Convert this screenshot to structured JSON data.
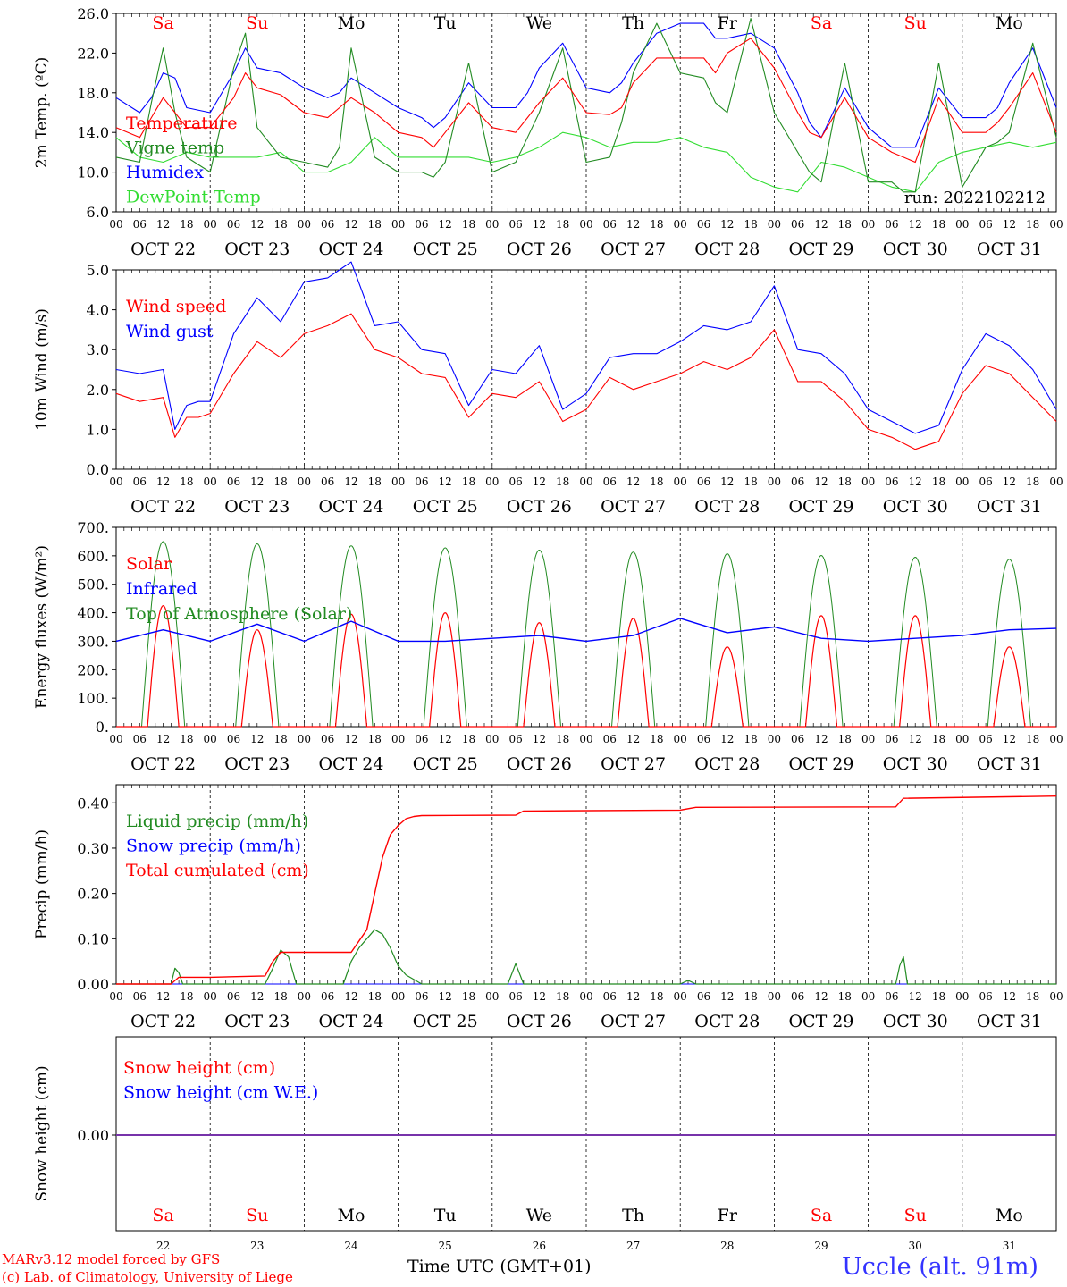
{
  "colors": {
    "red": "#ff0000",
    "green": "#228b22",
    "blue": "#0000ff",
    "lightgreen": "#33dd33",
    "purple": "#7733aa"
  },
  "days": {
    "weekday_labels": [
      "Sa",
      "Su",
      "Mo",
      "Tu",
      "We",
      "Th",
      "Fr",
      "Sa",
      "Su",
      "Mo"
    ],
    "weekend_flags": [
      true,
      true,
      false,
      false,
      false,
      false,
      false,
      true,
      true,
      false
    ],
    "date_labels": [
      "OCT 22",
      "OCT 23",
      "OCT 24",
      "OCT 25",
      "OCT 26",
      "OCT 27",
      "OCT 28",
      "OCT 29",
      "OCT 30",
      "OCT 31"
    ],
    "day_numbers": [
      "22",
      "23",
      "24",
      "25",
      "26",
      "27",
      "28",
      "29",
      "30",
      "31"
    ],
    "hour_ticks": [
      "00",
      "06",
      "12",
      "18"
    ],
    "end_hour": "00"
  },
  "footer": {
    "model_line1": "MARv3.12 model forced by GFS",
    "model_line2": "(c) Lab. of Climatology, University of Liege",
    "xlabel": "Time UTC (GMT+01)",
    "station": "Uccle (alt. 91m)"
  },
  "chart_data": [
    {
      "type": "line",
      "ylabel": "2m Temp. (ºC)",
      "ylim": [
        6.0,
        26.0
      ],
      "yticks": [
        "6.0",
        "10.0",
        "14.0",
        "18.0",
        "22.0",
        "26.0"
      ],
      "annotation": "run: 2022102212",
      "x_unit": "hours since OCT 22 00 UTC",
      "series": [
        {
          "name": "Temperature",
          "color": "red",
          "x": [
            0,
            6,
            9,
            12,
            15,
            18,
            24,
            30,
            33,
            36,
            42,
            48,
            54,
            57,
            60,
            66,
            72,
            78,
            81,
            84,
            90,
            96,
            102,
            105,
            108,
            114,
            120,
            126,
            129,
            132,
            138,
            144,
            150,
            153,
            156,
            162,
            168,
            174,
            177,
            180,
            186,
            192,
            198,
            201,
            204,
            210,
            216,
            222,
            225,
            228,
            234,
            240
          ],
          "y": [
            14.5,
            13.5,
            15.5,
            17.5,
            16.0,
            14.5,
            14.5,
            17.5,
            20.0,
            18.5,
            17.8,
            16.0,
            15.5,
            16.5,
            17.5,
            16.0,
            14.0,
            13.5,
            12.5,
            14.0,
            17.0,
            14.5,
            14.0,
            15.5,
            17.0,
            19.5,
            16.0,
            15.8,
            16.5,
            19.0,
            21.5,
            21.5,
            21.5,
            20.0,
            22.0,
            23.5,
            20.5,
            16.0,
            14.0,
            13.5,
            17.5,
            13.5,
            12.0,
            11.5,
            11.0,
            17.5,
            14.0,
            14.0,
            15.0,
            16.5,
            20.0,
            14.0
          ]
        },
        {
          "name": "Vigne temp",
          "color": "green",
          "x": [
            0,
            6,
            9,
            12,
            15,
            18,
            24,
            30,
            33,
            36,
            42,
            48,
            54,
            57,
            60,
            66,
            72,
            78,
            81,
            84,
            90,
            96,
            102,
            105,
            108,
            114,
            120,
            126,
            129,
            132,
            138,
            144,
            150,
            153,
            156,
            162,
            168,
            174,
            177,
            180,
            186,
            192,
            198,
            201,
            204,
            210,
            216,
            222,
            225,
            228,
            234,
            240
          ],
          "y": [
            11.5,
            11.0,
            17.0,
            22.5,
            16.0,
            11.5,
            10.0,
            20.5,
            24.0,
            14.5,
            11.5,
            11.0,
            10.5,
            12.5,
            22.5,
            11.5,
            10.0,
            10.0,
            9.5,
            11.0,
            21.0,
            10.0,
            11.0,
            13.5,
            16.0,
            22.5,
            11.0,
            11.5,
            15.0,
            20.0,
            25.0,
            20.0,
            19.5,
            17.0,
            16.0,
            25.5,
            16.0,
            12.0,
            10.0,
            9.0,
            21.0,
            9.0,
            9.0,
            8.0,
            8.0,
            21.0,
            8.5,
            12.5,
            13.0,
            14.0,
            23.0,
            13.5
          ]
        },
        {
          "name": "Humidex",
          "color": "blue",
          "x": [
            0,
            6,
            9,
            12,
            15,
            18,
            24,
            30,
            33,
            36,
            42,
            48,
            54,
            57,
            60,
            66,
            72,
            78,
            81,
            84,
            90,
            96,
            102,
            105,
            108,
            114,
            120,
            126,
            129,
            132,
            138,
            144,
            150,
            153,
            156,
            162,
            168,
            174,
            177,
            180,
            186,
            192,
            198,
            201,
            204,
            210,
            216,
            222,
            225,
            228,
            234,
            240
          ],
          "y": [
            17.5,
            16.0,
            17.5,
            20.0,
            19.5,
            16.5,
            16.0,
            20.0,
            22.5,
            20.5,
            20.0,
            18.5,
            17.5,
            18.0,
            19.5,
            18.0,
            16.5,
            15.5,
            14.5,
            15.5,
            19.0,
            16.5,
            16.5,
            18.0,
            20.5,
            23.0,
            18.5,
            18.0,
            19.0,
            21.0,
            24.0,
            25.0,
            25.0,
            23.5,
            23.5,
            24.0,
            22.5,
            18.0,
            15.0,
            13.5,
            18.5,
            14.5,
            12.5,
            12.5,
            12.5,
            18.5,
            15.5,
            15.5,
            16.5,
            19.0,
            22.5,
            16.5
          ]
        },
        {
          "name": "DewPoint Temp",
          "color": "lightgreen",
          "x": [
            0,
            6,
            12,
            18,
            24,
            30,
            36,
            42,
            48,
            54,
            60,
            66,
            72,
            78,
            84,
            90,
            96,
            102,
            108,
            114,
            120,
            126,
            132,
            138,
            144,
            150,
            156,
            162,
            168,
            174,
            180,
            186,
            192,
            198,
            204,
            210,
            216,
            222,
            228,
            234,
            240
          ],
          "y": [
            13.5,
            11.5,
            11.0,
            12.0,
            11.5,
            11.5,
            11.5,
            12.0,
            10.0,
            10.0,
            11.0,
            13.5,
            11.5,
            11.5,
            11.5,
            11.5,
            11.0,
            11.5,
            12.5,
            14.0,
            13.5,
            12.5,
            13.0,
            13.0,
            13.5,
            12.5,
            12.0,
            9.5,
            8.5,
            8.0,
            11.0,
            10.5,
            9.5,
            8.5,
            8.0,
            11.0,
            12.0,
            12.5,
            13.0,
            12.5,
            13.0
          ]
        }
      ]
    },
    {
      "type": "line",
      "ylabel": "10m Wind (m/s)",
      "ylim": [
        0.0,
        5.0
      ],
      "yticks": [
        "0.0",
        "1.0",
        "2.0",
        "3.0",
        "4.0",
        "5.0"
      ],
      "x_unit": "hours since OCT 22 00 UTC",
      "series": [
        {
          "name": "Wind speed",
          "color": "red",
          "x": [
            0,
            6,
            12,
            15,
            18,
            21,
            24,
            30,
            36,
            42,
            48,
            54,
            60,
            66,
            72,
            78,
            84,
            90,
            96,
            102,
            108,
            114,
            120,
            126,
            132,
            138,
            144,
            150,
            156,
            162,
            168,
            174,
            180,
            186,
            192,
            198,
            204,
            210,
            216,
            222,
            228,
            234,
            240
          ],
          "y": [
            1.9,
            1.7,
            1.8,
            0.8,
            1.3,
            1.3,
            1.4,
            2.4,
            3.2,
            2.8,
            3.4,
            3.6,
            3.9,
            3.0,
            2.8,
            2.4,
            2.3,
            1.3,
            1.9,
            1.8,
            2.2,
            1.2,
            1.5,
            2.3,
            2.0,
            2.2,
            2.4,
            2.7,
            2.5,
            2.8,
            3.5,
            2.2,
            2.2,
            1.7,
            1.0,
            0.8,
            0.5,
            0.7,
            1.9,
            2.6,
            2.4,
            1.8,
            1.2
          ]
        },
        {
          "name": "Wind gust",
          "color": "blue",
          "x": [
            0,
            6,
            12,
            15,
            18,
            21,
            24,
            30,
            36,
            42,
            48,
            54,
            60,
            66,
            72,
            78,
            84,
            90,
            96,
            102,
            108,
            114,
            120,
            126,
            132,
            138,
            144,
            150,
            156,
            162,
            168,
            174,
            180,
            186,
            192,
            198,
            204,
            210,
            216,
            222,
            228,
            234,
            240
          ],
          "y": [
            2.5,
            2.4,
            2.5,
            1.0,
            1.6,
            1.7,
            1.7,
            3.4,
            4.3,
            3.7,
            4.7,
            4.8,
            5.2,
            3.6,
            3.7,
            3.0,
            2.9,
            1.6,
            2.5,
            2.4,
            3.1,
            1.5,
            1.9,
            2.8,
            2.9,
            2.9,
            3.2,
            3.6,
            3.5,
            3.7,
            4.6,
            3.0,
            2.9,
            2.4,
            1.5,
            1.2,
            0.9,
            1.1,
            2.5,
            3.4,
            3.1,
            2.5,
            1.5
          ]
        }
      ]
    },
    {
      "type": "line",
      "ylabel": "Energy fluxes (W/m²)",
      "ylim": [
        0,
        700
      ],
      "yticks": [
        "0.",
        "100.",
        "200.",
        "300.",
        "400.",
        "500.",
        "600.",
        "700."
      ],
      "x_unit": "hours since OCT 22 00 UTC",
      "series": [
        {
          "name": "Solar",
          "color": "red",
          "peaks_Wm2": [
            425,
            340,
            395,
            400,
            365,
            380,
            280,
            390,
            390,
            280
          ]
        },
        {
          "name": "Infrared",
          "color": "blue",
          "x": [
            0,
            12,
            24,
            36,
            48,
            60,
            72,
            84,
            96,
            108,
            120,
            132,
            144,
            156,
            168,
            180,
            192,
            204,
            216,
            228,
            240
          ],
          "y": [
            300,
            340,
            300,
            360,
            300,
            370,
            300,
            300,
            310,
            320,
            300,
            320,
            380,
            330,
            350,
            310,
            300,
            310,
            320,
            340,
            345
          ]
        },
        {
          "name": "Top of Atmosphere (Solar)",
          "color": "green",
          "peaks_Wm2": [
            650,
            642,
            635,
            628,
            620,
            613,
            607,
            601,
            595,
            588
          ]
        }
      ]
    },
    {
      "type": "line",
      "ylabel": "Precip (mm/h)",
      "ylim": [
        0.0,
        0.44
      ],
      "yticks": [
        "0.00",
        "0.10",
        "0.20",
        "0.30",
        "0.40"
      ],
      "x_unit": "hours since OCT 22 00 UTC",
      "series": [
        {
          "name": "Liquid precip (mm/h)",
          "color": "green",
          "x": [
            0,
            14,
            15,
            16,
            17,
            24,
            38,
            40,
            42,
            44,
            46,
            58,
            60,
            62,
            64,
            66,
            68,
            70,
            72,
            74,
            76,
            78,
            82,
            100,
            102,
            104,
            144,
            146,
            148,
            199,
            200,
            201,
            202,
            240
          ],
          "y": [
            0,
            0,
            0.035,
            0.025,
            0,
            0,
            0,
            0.035,
            0.075,
            0.06,
            0,
            0,
            0.05,
            0.08,
            0.1,
            0.12,
            0.11,
            0.08,
            0.04,
            0.02,
            0.01,
            0,
            0,
            0,
            0.045,
            0,
            0,
            0.008,
            0,
            0,
            0.04,
            0.06,
            0,
            0
          ]
        },
        {
          "name": "Snow precip (mm/h)",
          "color": "blue",
          "x": [
            0,
            240
          ],
          "y": [
            0,
            0
          ]
        },
        {
          "name": "Total cumulated (cm)",
          "color": "red",
          "x": [
            0,
            14,
            16,
            24,
            38,
            40,
            42,
            60,
            64,
            66,
            68,
            70,
            72,
            74,
            76,
            78,
            102,
            104,
            144,
            148,
            199,
            201,
            240
          ],
          "y": [
            0,
            0,
            0.015,
            0.015,
            0.018,
            0.05,
            0.07,
            0.07,
            0.12,
            0.2,
            0.28,
            0.33,
            0.35,
            0.365,
            0.37,
            0.372,
            0.373,
            0.382,
            0.384,
            0.39,
            0.391,
            0.41,
            0.415
          ]
        }
      ]
    },
    {
      "type": "line",
      "ylabel": "Snow height (cm)",
      "ytick": "0.00",
      "x_unit": "hours since OCT 22 00 UTC",
      "series": [
        {
          "name": "Snow height (cm)",
          "color": "red",
          "x": [
            0,
            240
          ],
          "y": [
            0,
            0
          ]
        },
        {
          "name": "Snow height (cm W.E.)",
          "color": "blue",
          "x": [
            0,
            240
          ],
          "y": [
            0,
            0
          ]
        }
      ]
    }
  ]
}
